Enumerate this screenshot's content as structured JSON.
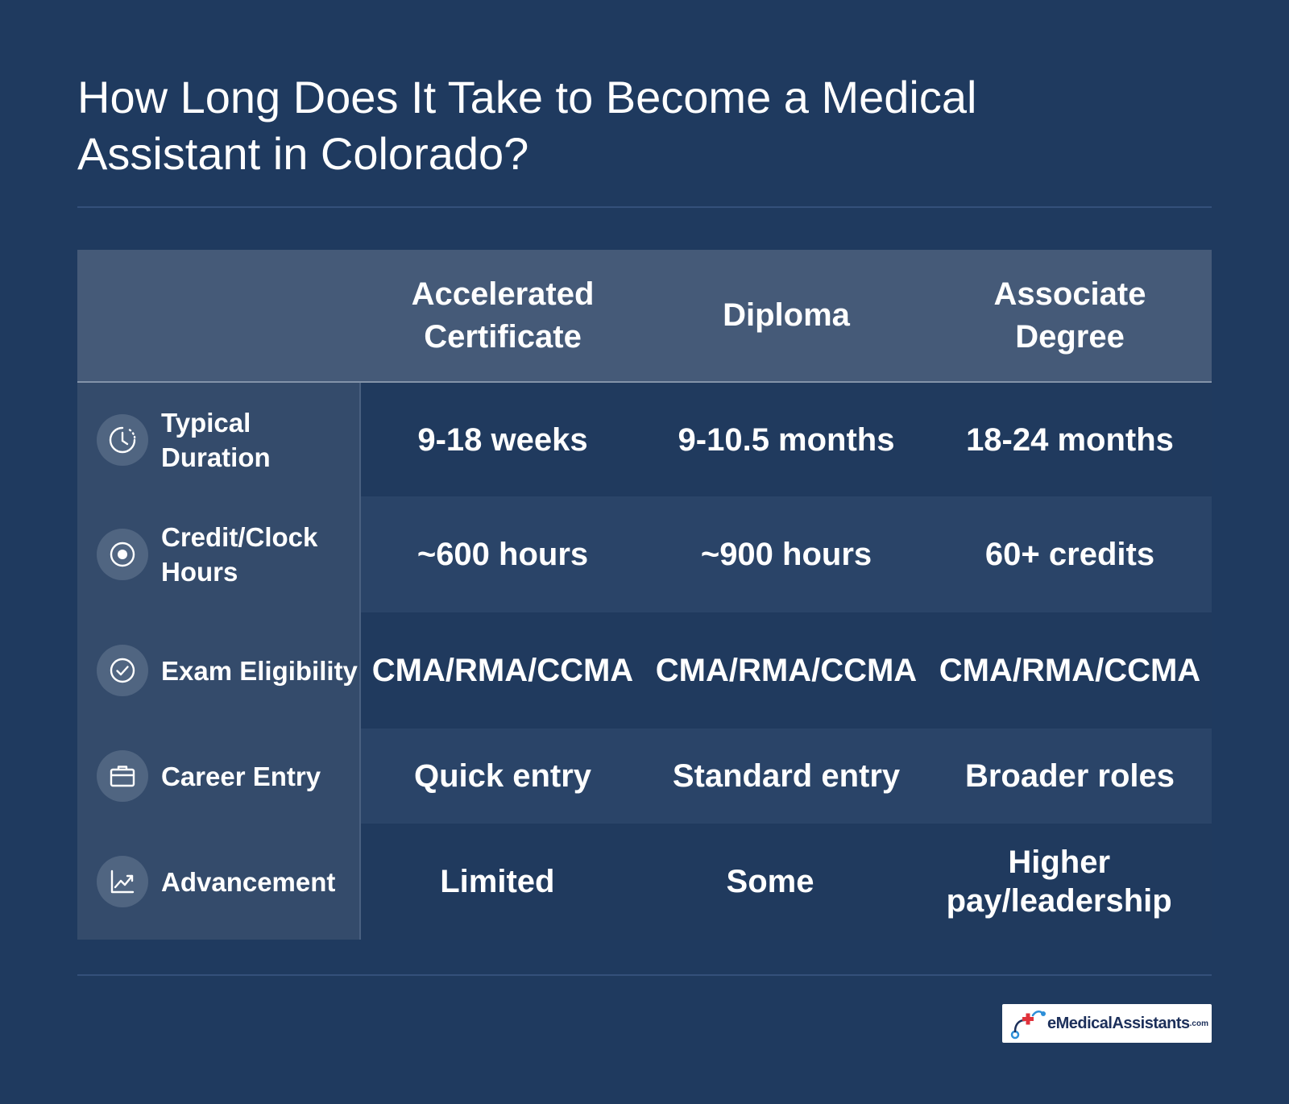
{
  "title": "How Long Does It Take to Become a Medical Assistant in Colorado?",
  "columns": [
    "Accelerated Certificate",
    "Diploma",
    "Associate Degree"
  ],
  "rows": [
    {
      "label": "Typical Duration",
      "icon": "clock-icon",
      "values": [
        "9-18 weeks",
        "9-10.5 months",
        "18-24 months"
      ]
    },
    {
      "label": "Credit/Clock Hours",
      "icon": "target-icon",
      "values": [
        "~600 hours",
        "~900 hours",
        "60+ credits"
      ]
    },
    {
      "label": "Exam Eligibility",
      "icon": "check-circle-icon",
      "values": [
        "CMA/RMA/CCMA",
        "CMA/RMA/CCMA",
        "CMA/RMA/CCMA"
      ]
    },
    {
      "label": "Career Entry",
      "icon": "briefcase-icon",
      "values": [
        "Quick entry",
        "Standard entry",
        "Broader roles"
      ]
    },
    {
      "label": "Advancement",
      "icon": "trend-chart-icon",
      "values": [
        "Limited",
        "Some",
        "Higher pay/leadership"
      ]
    }
  ],
  "logo": {
    "brand": "eMedicalAssistants",
    "tld": ".com"
  },
  "colors": {
    "background": "#1f3a5f",
    "header": "#455a78",
    "row_label": "#344b6b",
    "row_dark": "#203a5e",
    "row_light": "#2a4468",
    "accent_red": "#e0313a",
    "accent_blue": "#2d8fd8"
  }
}
